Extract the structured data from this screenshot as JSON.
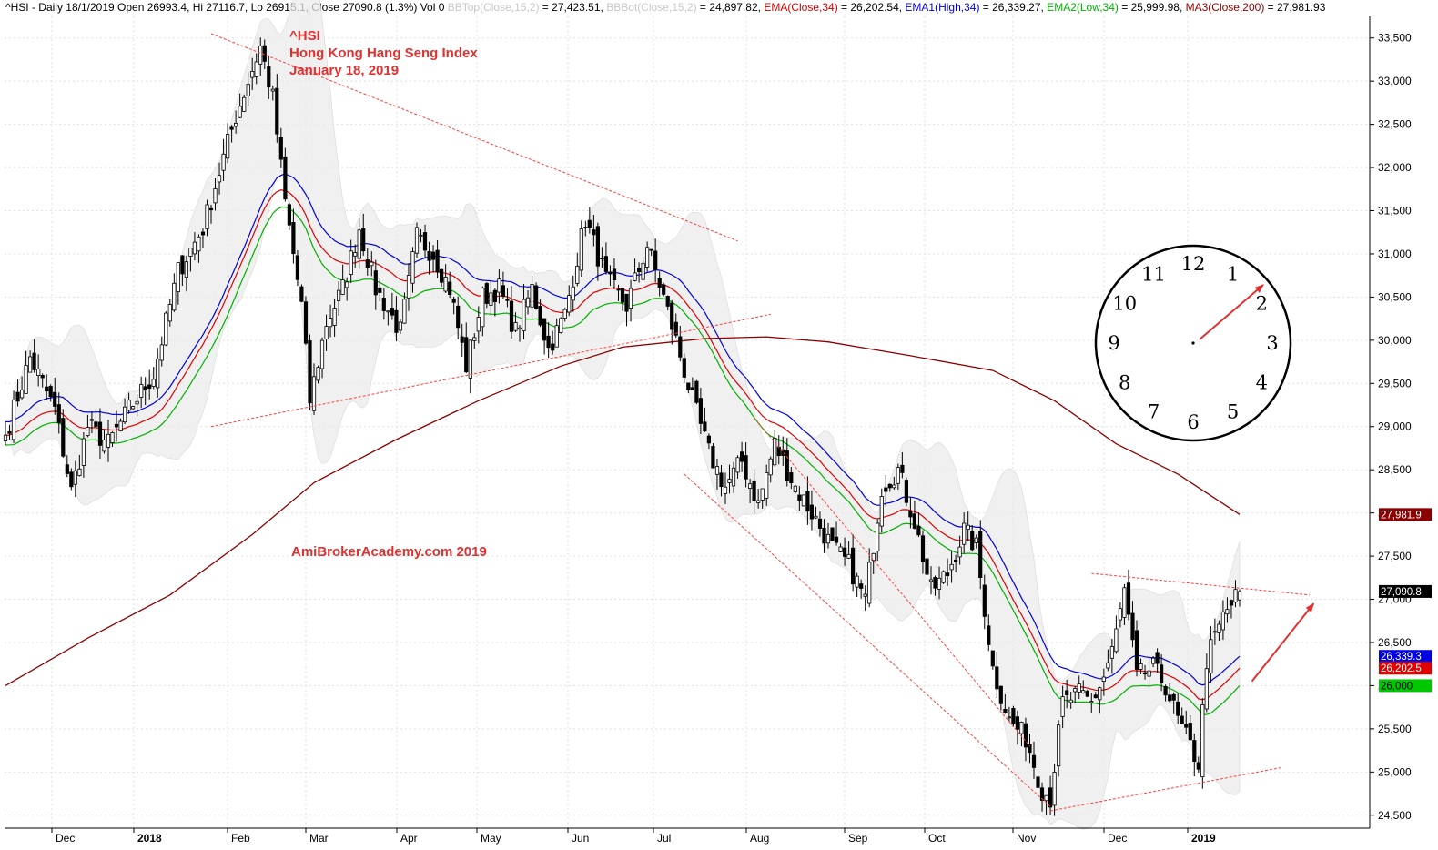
{
  "header": {
    "symbol_info": "^HSI - Daily 18/1/2019 Open 26993.4, Hi 27116.7, Lo 26915.1, Close 27090.8 (1.3%) Vol 0",
    "bbtop": "BBTop(Close,15,2)",
    "bbtop_value": " = 27,423.51, ",
    "bbbot": "BBBot(Close,15,2)",
    "bbbot_value": " = 24,897.82, ",
    "ema": "EMA(Close,34)",
    "ema_value": " = 26,202.54, ",
    "ema1": "EMA1(High,34)",
    "ema1_value": " = 26,339.27, ",
    "ema2": "EMA2(Low,34)",
    "ema2_value": " = 25,999.98, ",
    "ma3": "MA3(Close,200)",
    "ma3_value": " = 27,981.93"
  },
  "annotations": {
    "symbol": "^HSI",
    "index_name": "Hong Kong Hang Seng Index",
    "date": "January 18, 2019",
    "watermark": "AmiBrokerAcademy.com  2019"
  },
  "clock": {
    "numbers": [
      "12",
      "1",
      "2",
      "3",
      "4",
      "5",
      "6",
      "7",
      "8",
      "9",
      "10",
      "11"
    ],
    "pointing_to": "1"
  },
  "chart_data": {
    "type": "candlestick",
    "title": "Hong Kong Hang Seng Index",
    "symbol": "^HSI",
    "x_tick_labels": [
      "Dec",
      "2018",
      "Feb",
      "Mar",
      "Apr",
      "May",
      "Jun",
      "Jul",
      "Aug",
      "Sep",
      "Oct",
      "Nov",
      "Dec",
      "2019"
    ],
    "y_tick_labels": [
      "24,500",
      "25,000",
      "25,500",
      "26,000",
      "26,500",
      "27,000",
      "27,500",
      "28,000",
      "28,500",
      "29,000",
      "29,500",
      "30,000",
      "30,500",
      "31,000",
      "31,500",
      "32,000",
      "32,500",
      "33,000",
      "33,500"
    ],
    "y_ticks": [
      24500,
      25000,
      25500,
      26000,
      26500,
      27000,
      27500,
      28000,
      28500,
      29000,
      29500,
      30000,
      30500,
      31000,
      31500,
      32000,
      32500,
      33000,
      33500
    ],
    "ylim": [
      24350,
      33750
    ],
    "x_range": [
      0,
      300
    ],
    "grid": true,
    "price_pivots": [
      [
        0,
        28900
      ],
      [
        6,
        29800
      ],
      [
        12,
        29200
      ],
      [
        16,
        28250
      ],
      [
        20,
        29000
      ],
      [
        25,
        28800
      ],
      [
        30,
        29200
      ],
      [
        36,
        29600
      ],
      [
        42,
        30800
      ],
      [
        48,
        31300
      ],
      [
        56,
        32600
      ],
      [
        62,
        33400
      ],
      [
        65,
        32800
      ],
      [
        68,
        31600
      ],
      [
        72,
        30400
      ],
      [
        74,
        29300
      ],
      [
        78,
        30200
      ],
      [
        82,
        30600
      ],
      [
        86,
        31300
      ],
      [
        90,
        30600
      ],
      [
        96,
        30100
      ],
      [
        100,
        31200
      ],
      [
        104,
        31000
      ],
      [
        108,
        30600
      ],
      [
        112,
        29700
      ],
      [
        116,
        30500
      ],
      [
        120,
        30600
      ],
      [
        124,
        30100
      ],
      [
        128,
        30600
      ],
      [
        132,
        29900
      ],
      [
        136,
        30300
      ],
      [
        141,
        31400
      ],
      [
        146,
        30700
      ],
      [
        151,
        30400
      ],
      [
        156,
        31100
      ],
      [
        160,
        30500
      ],
      [
        163,
        30000
      ],
      [
        167,
        29300
      ],
      [
        171,
        28700
      ],
      [
        175,
        28300
      ],
      [
        179,
        28600
      ],
      [
        183,
        28100
      ],
      [
        187,
        28800
      ],
      [
        192,
        28300
      ],
      [
        196,
        28000
      ],
      [
        201,
        27600
      ],
      [
        205,
        27400
      ],
      [
        209,
        27000
      ],
      [
        213,
        28300
      ],
      [
        217,
        28500
      ],
      [
        221,
        27900
      ],
      [
        225,
        27100
      ],
      [
        229,
        27300
      ],
      [
        233,
        27800
      ],
      [
        236,
        27600
      ],
      [
        240,
        26200
      ],
      [
        244,
        25600
      ],
      [
        248,
        25400
      ],
      [
        252,
        24800
      ],
      [
        254,
        24700
      ],
      [
        257,
        25800
      ],
      [
        261,
        25900
      ],
      [
        264,
        25800
      ],
      [
        267,
        26100
      ],
      [
        270,
        26600
      ],
      [
        272,
        27100
      ],
      [
        275,
        26100
      ],
      [
        279,
        26200
      ],
      [
        282,
        26000
      ],
      [
        285,
        25600
      ],
      [
        288,
        25300
      ],
      [
        290,
        25100
      ],
      [
        292,
        26300
      ],
      [
        296,
        26800
      ],
      [
        300,
        27090
      ]
    ],
    "series": [
      {
        "name": "BBTop(Close,15,2)",
        "last": 27423.51
      },
      {
        "name": "BBBot(Close,15,2)",
        "last": 24897.82
      },
      {
        "name": "EMA(Close,34)",
        "last": 26202.54,
        "color": "#e00000"
      },
      {
        "name": "EMA1(High,34)",
        "last": 26339.27,
        "color": "#0000e0"
      },
      {
        "name": "EMA2(Low,34)",
        "last": 25999.98,
        "color": "#00b000"
      },
      {
        "name": "MA3(Close,200)",
        "last": 27981.93,
        "color": "#8b0000",
        "points": [
          [
            0,
            26000
          ],
          [
            20,
            26550
          ],
          [
            40,
            27050
          ],
          [
            60,
            27750
          ],
          [
            75,
            28350
          ],
          [
            95,
            28850
          ],
          [
            115,
            29300
          ],
          [
            135,
            29700
          ],
          [
            150,
            29920
          ],
          [
            170,
            30020
          ],
          [
            185,
            30040
          ],
          [
            200,
            29980
          ],
          [
            220,
            29820
          ],
          [
            240,
            29650
          ],
          [
            255,
            29300
          ],
          [
            270,
            28800
          ],
          [
            285,
            28450
          ],
          [
            300,
            27982
          ]
        ]
      }
    ],
    "last_value_badges": [
      {
        "label": "27,981.9",
        "value": 27981.93,
        "bg": "#8b0000",
        "fg": "#ffffff"
      },
      {
        "label": "27,090.8",
        "value": 27090.8,
        "bg": "#000000",
        "fg": "#ffffff"
      },
      {
        "label": "26,339.3",
        "value": 26339.27,
        "bg": "#0000e0",
        "fg": "#ffffff"
      },
      {
        "label": "26,202.5",
        "value": 26202.54,
        "bg": "#e00000",
        "fg": "#ffffff"
      },
      {
        "label": "26,000",
        "value": 25999.98,
        "bg": "#00c800",
        "fg": "#000000"
      }
    ],
    "trend_lines": [
      {
        "from": [
          50,
          33550
        ],
        "to": [
          178,
          31150
        ]
      },
      {
        "from": [
          50,
          29000
        ],
        "to": [
          186,
          30300
        ]
      },
      {
        "from": [
          165,
          28450
        ],
        "to": [
          254,
          24600
        ]
      },
      {
        "from": [
          182,
          29100
        ],
        "to": [
          249,
          25300
        ]
      },
      {
        "from": [
          254,
          24550
        ],
        "to": [
          310,
          25050
        ]
      },
      {
        "from": [
          264,
          27300
        ],
        "to": [
          317,
          27050
        ]
      }
    ],
    "arrows": [
      {
        "from": [
          303,
          26050
        ],
        "to": [
          318,
          26950
        ]
      }
    ],
    "colors": {
      "candle_up_fill": "#ffffff",
      "candle_down_fill": "#000000",
      "trend_line": "#ff4040",
      "band_fill": "#ebebeb",
      "grid": "#e0e0e0"
    }
  }
}
